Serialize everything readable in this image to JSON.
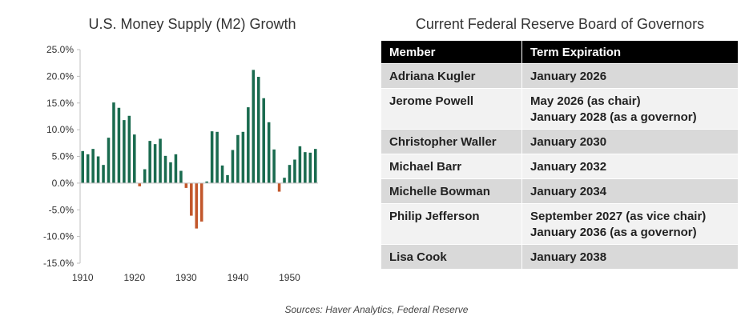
{
  "chart_data": {
    "type": "bar",
    "title": "U.S. Money Supply (M2) Growth",
    "xlabel": "",
    "ylabel": "",
    "x": [
      1910,
      1911,
      1912,
      1913,
      1914,
      1915,
      1916,
      1917,
      1918,
      1919,
      1920,
      1921,
      1922,
      1923,
      1924,
      1925,
      1926,
      1927,
      1928,
      1929,
      1930,
      1931,
      1932,
      1933,
      1934,
      1935,
      1936,
      1937,
      1938,
      1939,
      1940,
      1941,
      1942,
      1943,
      1944,
      1945,
      1946,
      1947,
      1948,
      1949,
      1950,
      1951,
      1952,
      1953,
      1954,
      1955
    ],
    "values": [
      6.0,
      5.4,
      6.4,
      5.0,
      3.4,
      8.5,
      15.1,
      14.1,
      11.8,
      12.6,
      9.1,
      -0.6,
      2.6,
      7.9,
      7.3,
      8.3,
      5.1,
      3.9,
      5.4,
      2.3,
      -0.9,
      -6.1,
      -8.5,
      -7.2,
      0.3,
      9.7,
      9.6,
      3.3,
      1.5,
      6.2,
      9.0,
      9.6,
      14.2,
      21.2,
      19.9,
      15.9,
      11.4,
      6.3,
      -1.6,
      1.0,
      3.4,
      4.4,
      6.9,
      5.8,
      5.7,
      6.4
    ],
    "ylim": [
      -15,
      25
    ],
    "yticks": [
      25,
      20,
      15,
      10,
      5,
      0,
      -5,
      -10,
      -15
    ],
    "ytick_labels": [
      "25.0%",
      "20.0%",
      "15.0%",
      "10.0%",
      "5.0%",
      "0.0%",
      "-5.0%",
      "-10.0%",
      "-15.0%"
    ],
    "xticks": [
      1910,
      1920,
      1930,
      1940,
      1950
    ],
    "xtick_labels": [
      "1910",
      "1920",
      "1930",
      "1940",
      "1950"
    ],
    "xlim": [
      1909.5,
      1955.5
    ],
    "grid": false,
    "colors": {
      "positive": "#1a6b4f",
      "negative": "#c2572b"
    }
  },
  "table": {
    "title": "Current Federal Reserve Board of Governors",
    "headers": {
      "member": "Member",
      "term": "Term Expiration"
    },
    "rows": [
      {
        "member": "Adriana Kugler",
        "term": [
          "January 2026"
        ]
      },
      {
        "member": "Jerome Powell",
        "term": [
          "May 2026 (as chair)",
          "January 2028 (as a governor)"
        ]
      },
      {
        "member": "Christopher Waller",
        "term": [
          "January 2030"
        ]
      },
      {
        "member": "Michael Barr",
        "term": [
          "January 2032"
        ]
      },
      {
        "member": "Michelle Bowman",
        "term": [
          "January 2034"
        ]
      },
      {
        "member": "Philip Jefferson",
        "term": [
          "September 2027 (as vice chair)",
          "January 2036 (as a governor)"
        ]
      },
      {
        "member": "Lisa Cook",
        "term": [
          "January 2038"
        ]
      }
    ]
  },
  "sources": "Sources: Haver Analytics, Federal Reserve"
}
